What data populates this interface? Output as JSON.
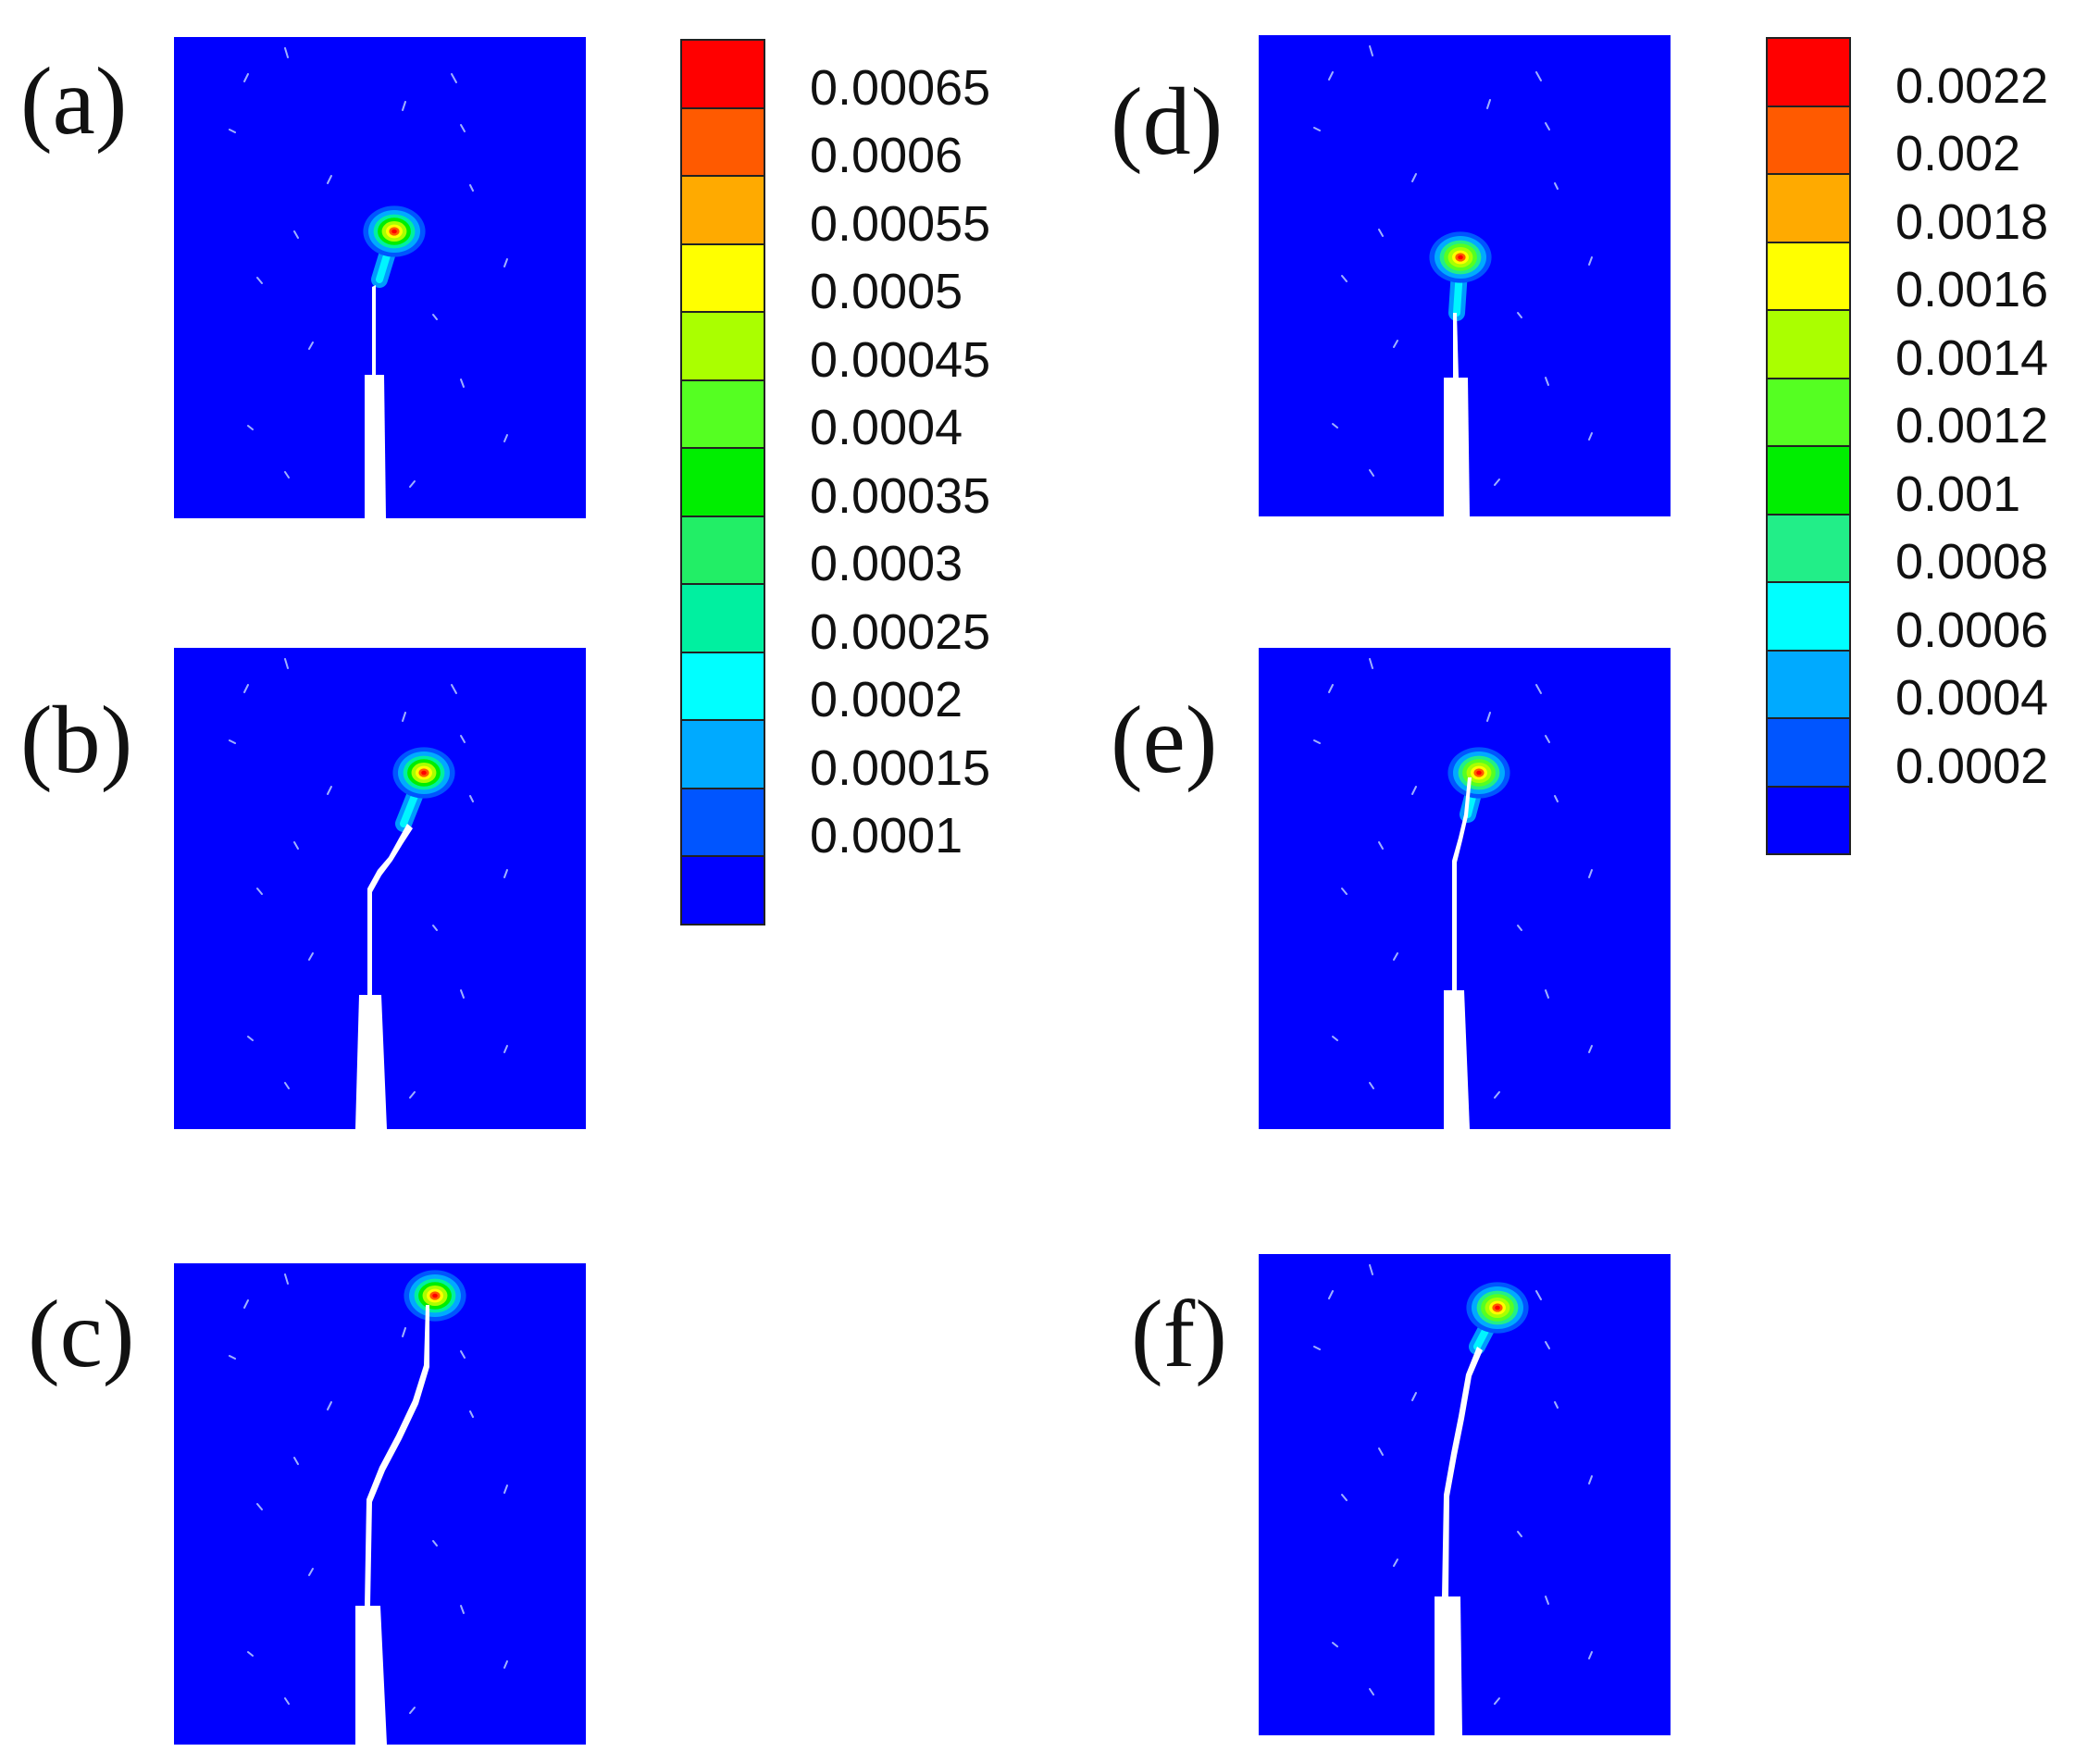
{
  "panels": [
    {
      "id": "a",
      "label": "(a)",
      "colorbar": "left"
    },
    {
      "id": "b",
      "label": "(b)",
      "colorbar": "left"
    },
    {
      "id": "c",
      "label": "(c)",
      "colorbar": "left"
    },
    {
      "id": "d",
      "label": "(d)",
      "colorbar": "right"
    },
    {
      "id": "e",
      "label": "(e)",
      "colorbar": "right"
    },
    {
      "id": "f",
      "label": "(f)",
      "colorbar": "right"
    }
  ],
  "colorbars": {
    "left": {
      "labels": [
        "0.00065",
        "0.0006",
        "0.00055",
        "0.0005",
        "0.00045",
        "0.0004",
        "0.00035",
        "0.0003",
        "0.00025",
        "0.0002",
        "0.00015",
        "0.0001"
      ],
      "colors": [
        "#ff0000",
        "#ff5a00",
        "#ffaa00",
        "#ffff00",
        "#aaff00",
        "#55ff22",
        "#00ee00",
        "#22ee66",
        "#00f0a0",
        "#00ffff",
        "#00aaff",
        "#0055ff",
        "#0000ff"
      ]
    },
    "right": {
      "labels": [
        "0.0022",
        "0.002",
        "0.0018",
        "0.0016",
        "0.0014",
        "0.0012",
        "0.001",
        "0.0008",
        "0.0006",
        "0.0004",
        "0.0002"
      ],
      "colors": [
        "#ff0000",
        "#ff5a00",
        "#ffaa00",
        "#ffff00",
        "#aaff00",
        "#55ff22",
        "#00ee00",
        "#22ee88",
        "#00ffff",
        "#00aaff",
        "#0055ff",
        "#0000ff"
      ]
    }
  },
  "colors": {
    "background": "#0000ff",
    "crack": "#ffffff"
  }
}
